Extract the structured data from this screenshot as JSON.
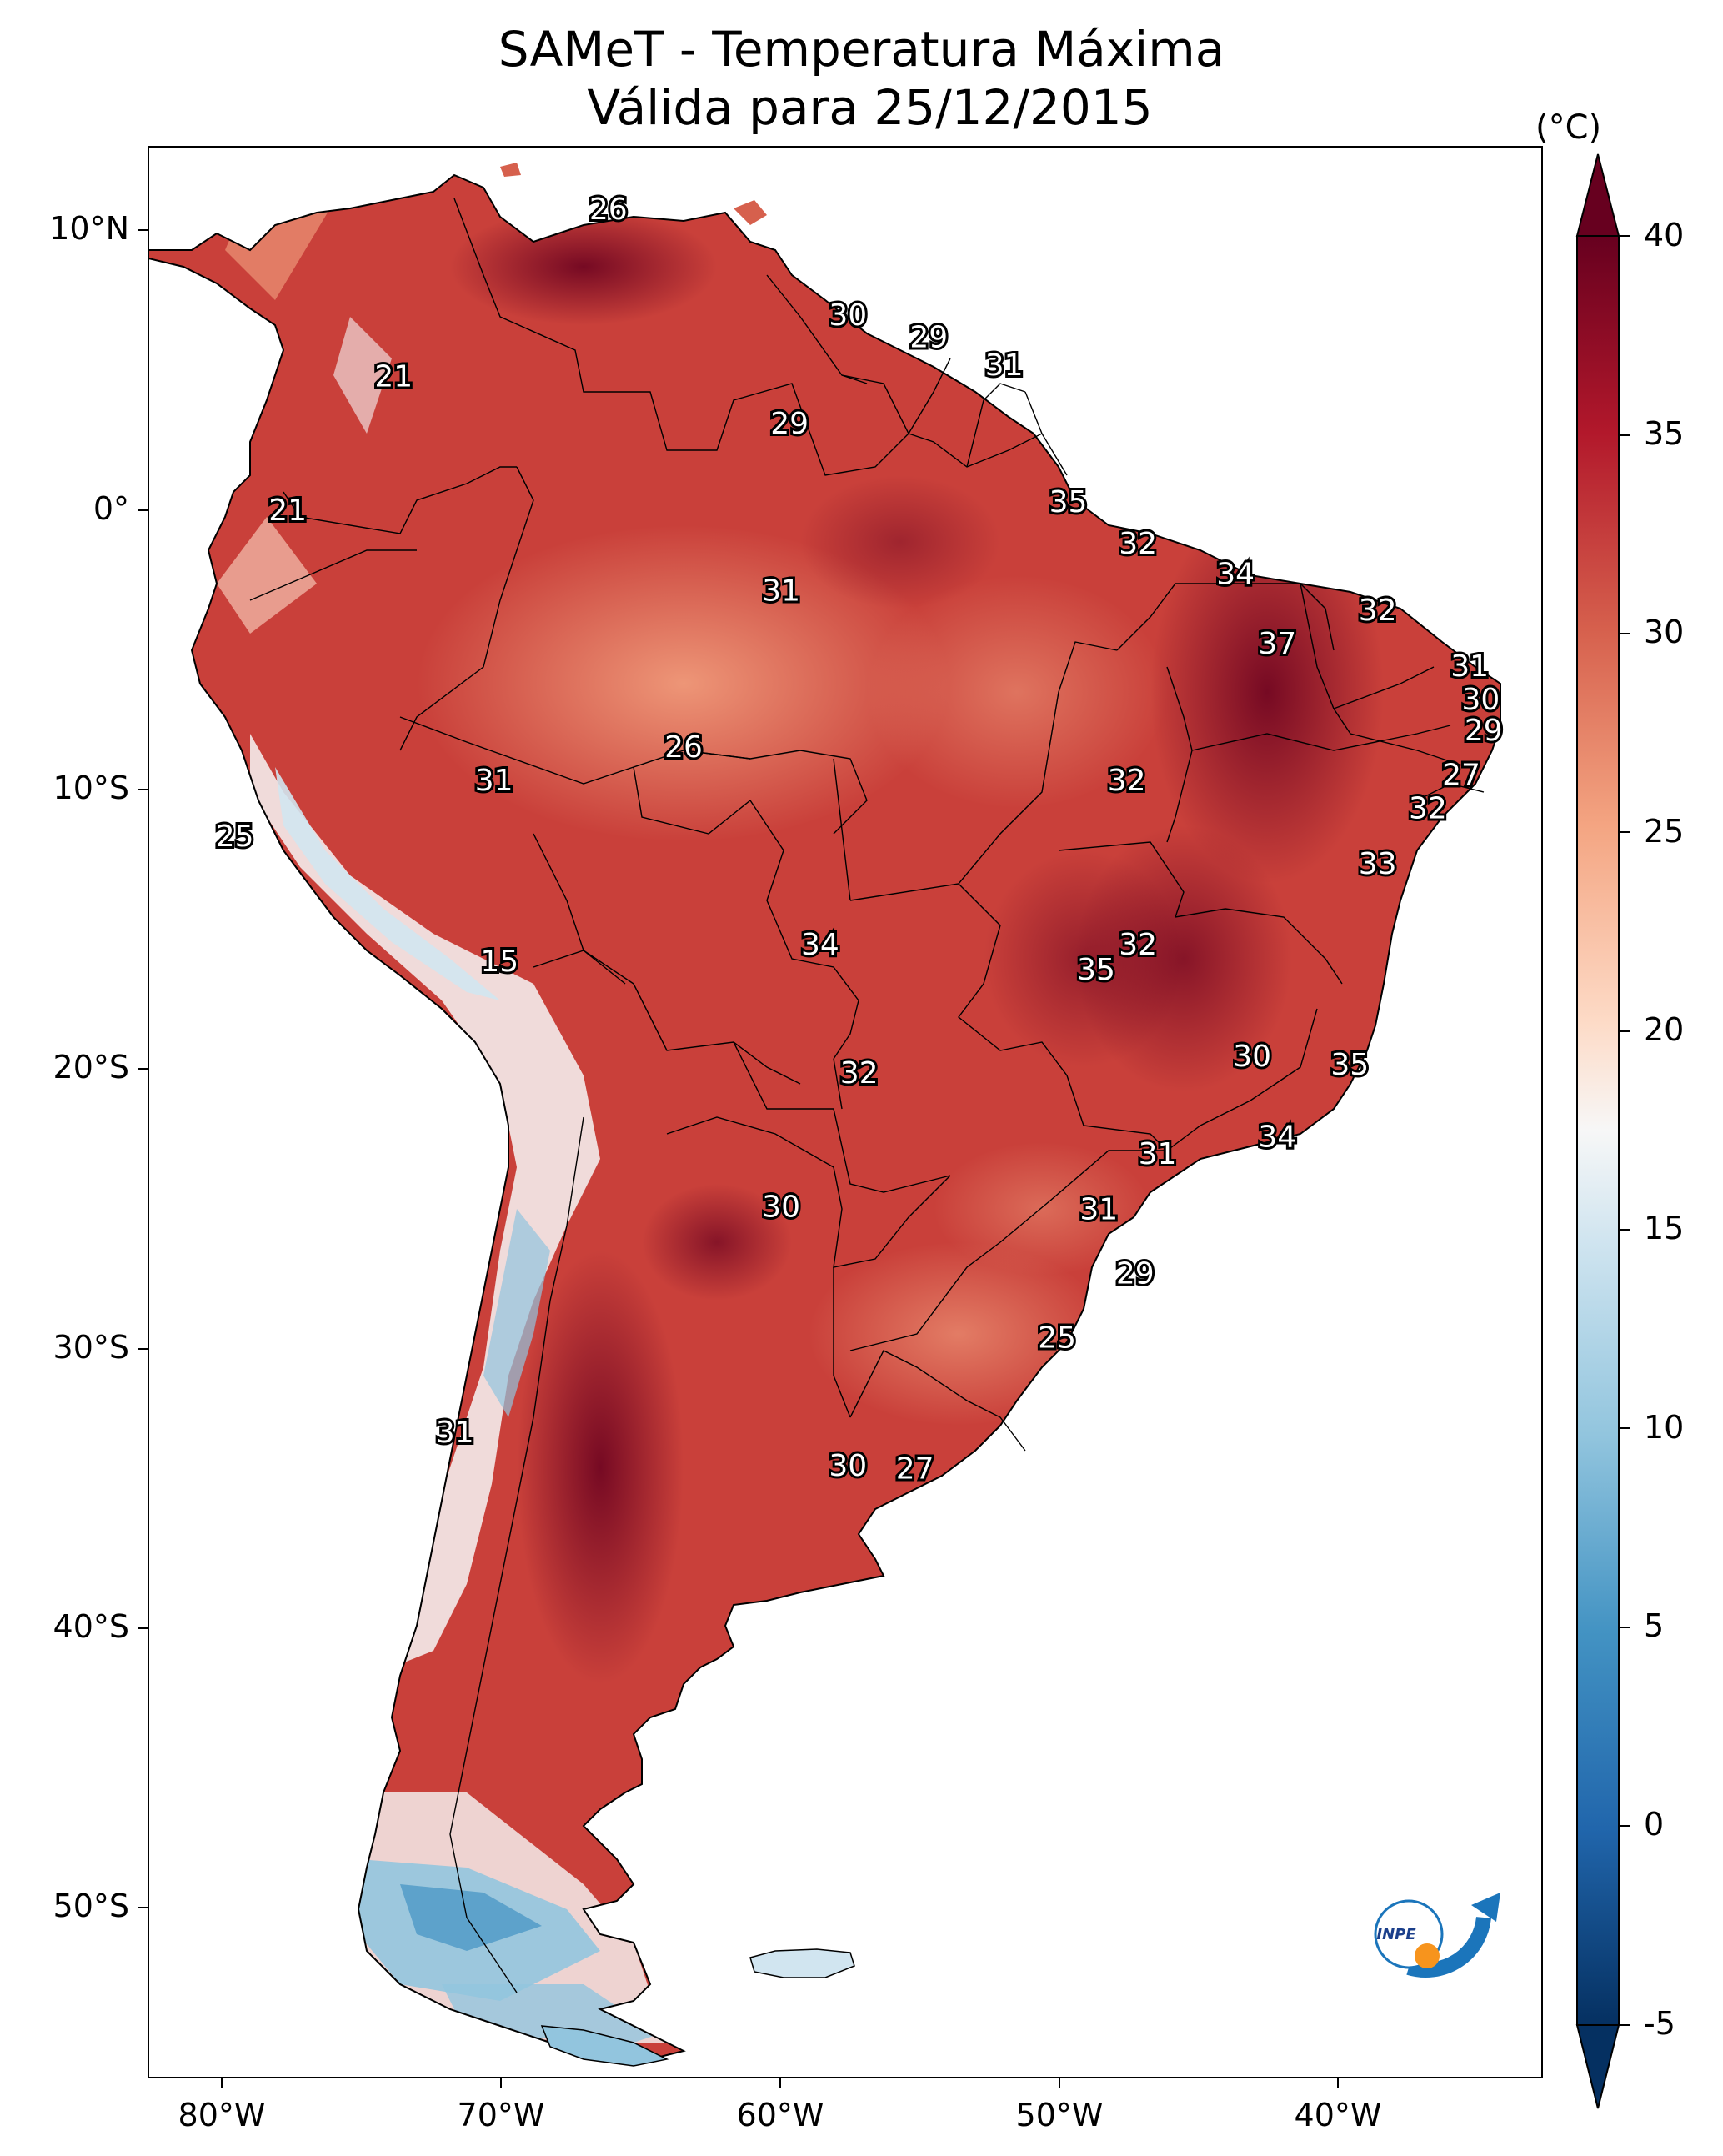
{
  "title": "SAMeT - Temperatura Máxima",
  "subtitle": "Válida para 25/12/2015",
  "colorbar": {
    "unit": "(°C)",
    "ticks": [
      "40",
      "35",
      "30",
      "25",
      "20",
      "15",
      "10",
      "5",
      "0",
      "-5"
    ],
    "range": [
      -5,
      40
    ],
    "colormap": "RdBu_r",
    "colors": {
      "hot": "#67001f",
      "warm": "#d6604d",
      "neutral": "#f7f7f7",
      "cool": "#4393c3",
      "cold": "#053061"
    }
  },
  "axes": {
    "lon_labels": [
      "80°W",
      "70°W",
      "60°W",
      "50°W",
      "40°W"
    ],
    "lat_labels": [
      "10°N",
      "0°",
      "10°S",
      "20°S",
      "30°S",
      "40°S",
      "50°S"
    ],
    "lon_range": [
      -83,
      -33
    ],
    "lat_range": [
      -56.5,
      12.8
    ]
  },
  "isotherm_labels": [
    {
      "text": "26",
      "lon": -66.5,
      "lat": 10.5
    },
    {
      "text": "21",
      "lon": -74.2,
      "lat": 4.5
    },
    {
      "text": "21",
      "lon": -78.0,
      "lat": -0.3
    },
    {
      "text": "30",
      "lon": -57.9,
      "lat": 6.7
    },
    {
      "text": "29",
      "lon": -55.0,
      "lat": 5.9
    },
    {
      "text": "31",
      "lon": -52.3,
      "lat": 4.9
    },
    {
      "text": "29",
      "lon": -60.0,
      "lat": 2.8
    },
    {
      "text": "35",
      "lon": -50.0,
      "lat": 0.0
    },
    {
      "text": "32",
      "lon": -47.5,
      "lat": -1.5
    },
    {
      "text": "34",
      "lon": -44.0,
      "lat": -2.6
    },
    {
      "text": "31",
      "lon": -60.3,
      "lat": -3.2
    },
    {
      "text": "32",
      "lon": -38.9,
      "lat": -3.9
    },
    {
      "text": "37",
      "lon": -42.5,
      "lat": -5.1
    },
    {
      "text": "31",
      "lon": -35.6,
      "lat": -5.9
    },
    {
      "text": "30",
      "lon": -35.2,
      "lat": -7.1
    },
    {
      "text": "29",
      "lon": -35.1,
      "lat": -8.2
    },
    {
      "text": "27",
      "lon": -35.9,
      "lat": -9.8
    },
    {
      "text": "32",
      "lon": -37.1,
      "lat": -11.0
    },
    {
      "text": "33",
      "lon": -38.9,
      "lat": -13.0
    },
    {
      "text": "26",
      "lon": -63.8,
      "lat": -8.8
    },
    {
      "text": "31",
      "lon": -70.6,
      "lat": -10.0
    },
    {
      "text": "32",
      "lon": -47.9,
      "lat": -10.0
    },
    {
      "text": "25",
      "lon": -79.9,
      "lat": -12.0
    },
    {
      "text": "15",
      "lon": -70.4,
      "lat": -16.5
    },
    {
      "text": "34",
      "lon": -58.9,
      "lat": -15.9
    },
    {
      "text": "32",
      "lon": -47.5,
      "lat": -15.9
    },
    {
      "text": "35",
      "lon": -49.0,
      "lat": -16.8
    },
    {
      "text": "32",
      "lon": -57.5,
      "lat": -20.5
    },
    {
      "text": "30",
      "lon": -43.4,
      "lat": -19.9
    },
    {
      "text": "35",
      "lon": -39.9,
      "lat": -20.2
    },
    {
      "text": "34",
      "lon": -42.5,
      "lat": -22.8
    },
    {
      "text": "31",
      "lon": -46.8,
      "lat": -23.4
    },
    {
      "text": "30",
      "lon": -60.3,
      "lat": -25.3
    },
    {
      "text": "31",
      "lon": -48.9,
      "lat": -25.4
    },
    {
      "text": "29",
      "lon": -47.6,
      "lat": -27.7
    },
    {
      "text": "25",
      "lon": -50.4,
      "lat": -30.0
    },
    {
      "text": "31",
      "lon": -72.0,
      "lat": -33.4
    },
    {
      "text": "30",
      "lon": -57.9,
      "lat": -34.6
    },
    {
      "text": "27",
      "lon": -55.5,
      "lat": -34.7
    }
  ],
  "logo": {
    "text": "INPE"
  }
}
